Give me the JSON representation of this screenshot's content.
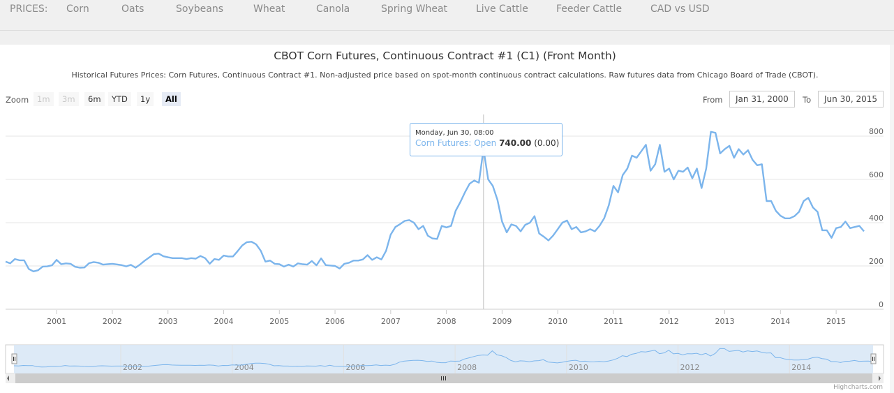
{
  "nav": {
    "label": "PRICES:",
    "items": [
      "Corn",
      "Oats",
      "Soybeans",
      "Wheat",
      "Canola",
      "Spring Wheat",
      "Live Cattle",
      "Feeder Cattle",
      "CAD vs USD"
    ]
  },
  "chart": {
    "title": "CBOT Corn Futures, Continuous Contract #1 (C1) (Front Month)",
    "subtitle": "Historical Futures Prices: Corn Futures, Continuous Contract #1. Non-adjusted price based on spot-month continuous contract calculations. Raw futures data from Chicago Board of Trade (CBOT).",
    "credits": "Highcharts.com"
  },
  "zoom": {
    "label": "Zoom",
    "buttons": [
      "1m",
      "3m",
      "6m",
      "YTD",
      "1y",
      "All"
    ]
  },
  "range": {
    "from_label": "From",
    "from_value": "Jan 31, 2000",
    "to_label": "To",
    "to_value": "Jun 30, 2015"
  },
  "tooltip": {
    "date": "Monday, Jun 30, 08:00",
    "series": "Corn Futures: Open",
    "value": "740.00",
    "change": "(0.00)"
  },
  "colors": {
    "line": "#7cb5ec",
    "navigator_fill": "#d7e6f6",
    "grid": "#e6e6e6"
  },
  "chart_data": {
    "type": "line",
    "series": [
      {
        "name": "Corn Futures: Open"
      }
    ],
    "x": [
      "2000-01",
      "2000-02",
      "2000-03",
      "2000-04",
      "2000-05",
      "2000-06",
      "2000-07",
      "2000-08",
      "2000-09",
      "2000-10",
      "2000-11",
      "2000-12",
      "2001-01",
      "2001-02",
      "2001-03",
      "2001-04",
      "2001-05",
      "2001-06",
      "2001-07",
      "2001-08",
      "2001-09",
      "2001-10",
      "2001-11",
      "2001-12",
      "2002-01",
      "2002-02",
      "2002-03",
      "2002-04",
      "2002-05",
      "2002-06",
      "2002-07",
      "2002-08",
      "2002-09",
      "2002-10",
      "2002-11",
      "2002-12",
      "2003-01",
      "2003-02",
      "2003-03",
      "2003-04",
      "2003-05",
      "2003-06",
      "2003-07",
      "2003-08",
      "2003-09",
      "2003-10",
      "2003-11",
      "2003-12",
      "2004-01",
      "2004-02",
      "2004-03",
      "2004-04",
      "2004-05",
      "2004-06",
      "2004-07",
      "2004-08",
      "2004-09",
      "2004-10",
      "2004-11",
      "2004-12",
      "2005-01",
      "2005-02",
      "2005-03",
      "2005-04",
      "2005-05",
      "2005-06",
      "2005-07",
      "2005-08",
      "2005-09",
      "2005-10",
      "2005-11",
      "2005-12",
      "2006-01",
      "2006-02",
      "2006-03",
      "2006-04",
      "2006-05",
      "2006-06",
      "2006-07",
      "2006-08",
      "2006-09",
      "2006-10",
      "2006-11",
      "2006-12",
      "2007-01",
      "2007-02",
      "2007-03",
      "2007-04",
      "2007-05",
      "2007-06",
      "2007-07",
      "2007-08",
      "2007-09",
      "2007-10",
      "2007-11",
      "2007-12",
      "2008-01",
      "2008-02",
      "2008-03",
      "2008-04",
      "2008-05",
      "2008-06",
      "2008-07",
      "2008-08",
      "2008-09",
      "2008-10",
      "2008-11",
      "2008-12",
      "2009-01",
      "2009-02",
      "2009-03",
      "2009-04",
      "2009-05",
      "2009-06",
      "2009-07",
      "2009-08",
      "2009-09",
      "2009-10",
      "2009-11",
      "2009-12",
      "2010-01",
      "2010-02",
      "2010-03",
      "2010-04",
      "2010-05",
      "2010-06",
      "2010-07",
      "2010-08",
      "2010-09",
      "2010-10",
      "2010-11",
      "2010-12",
      "2011-01",
      "2011-02",
      "2011-03",
      "2011-04",
      "2011-05",
      "2011-06",
      "2011-07",
      "2011-08",
      "2011-09",
      "2011-10",
      "2011-11",
      "2011-12",
      "2012-01",
      "2012-02",
      "2012-03",
      "2012-04",
      "2012-05",
      "2012-06",
      "2012-07",
      "2012-08",
      "2012-09",
      "2012-10",
      "2012-11",
      "2012-12",
      "2013-01",
      "2013-02",
      "2013-03",
      "2013-04",
      "2013-05",
      "2013-06",
      "2013-07",
      "2013-08",
      "2013-09",
      "2013-10",
      "2013-11",
      "2013-12",
      "2014-01",
      "2014-02",
      "2014-03",
      "2014-04",
      "2014-05",
      "2014-06",
      "2014-07",
      "2014-08",
      "2014-09",
      "2014-10",
      "2014-11",
      "2014-12",
      "2015-01",
      "2015-02",
      "2015-03",
      "2015-04",
      "2015-05",
      "2015-06"
    ],
    "values": [
      220,
      212,
      232,
      226,
      226,
      186,
      175,
      180,
      197,
      198,
      203,
      228,
      208,
      212,
      210,
      196,
      192,
      193,
      213,
      218,
      215,
      206,
      208,
      210,
      207,
      204,
      198,
      205,
      192,
      207,
      225,
      240,
      255,
      257,
      245,
      240,
      236,
      236,
      236,
      232,
      236,
      234,
      246,
      236,
      210,
      232,
      228,
      248,
      244,
      244,
      268,
      295,
      310,
      312,
      300,
      270,
      220,
      225,
      210,
      208,
      197,
      206,
      197,
      212,
      208,
      206,
      223,
      203,
      235,
      204,
      202,
      200,
      188,
      210,
      215,
      225,
      225,
      230,
      250,
      228,
      240,
      230,
      270,
      345,
      380,
      393,
      408,
      412,
      400,
      370,
      385,
      340,
      327,
      325,
      385,
      378,
      385,
      455,
      495,
      540,
      580,
      595,
      585,
      740,
      600,
      570,
      505,
      405,
      355,
      392,
      385,
      360,
      390,
      400,
      430,
      350,
      335,
      318,
      340,
      370,
      400,
      410,
      370,
      380,
      355,
      360,
      370,
      360,
      385,
      420,
      480,
      570,
      540,
      620,
      650,
      710,
      700,
      730,
      760,
      640,
      670,
      760,
      635,
      650,
      600,
      640,
      635,
      655,
      605,
      650,
      560,
      650,
      820,
      815,
      720,
      740,
      755,
      700,
      740,
      715,
      735,
      690,
      665,
      670,
      500,
      500,
      455,
      432,
      420,
      420,
      430,
      450,
      500,
      515,
      470,
      450,
      365,
      365,
      330,
      375,
      380,
      405,
      375,
      380,
      385,
      360
    ],
    "ylim": [
      0,
      900
    ],
    "yticks": [
      0,
      200,
      400,
      600,
      800
    ],
    "xticks": [
      "2001",
      "2002",
      "2003",
      "2004",
      "2005",
      "2006",
      "2007",
      "2008",
      "2009",
      "2010",
      "2011",
      "2012",
      "2013",
      "2014",
      "2015"
    ],
    "navigator_labels": [
      "2002",
      "2004",
      "2006",
      "2008",
      "2010",
      "2012",
      "2014"
    ],
    "grid": true
  }
}
